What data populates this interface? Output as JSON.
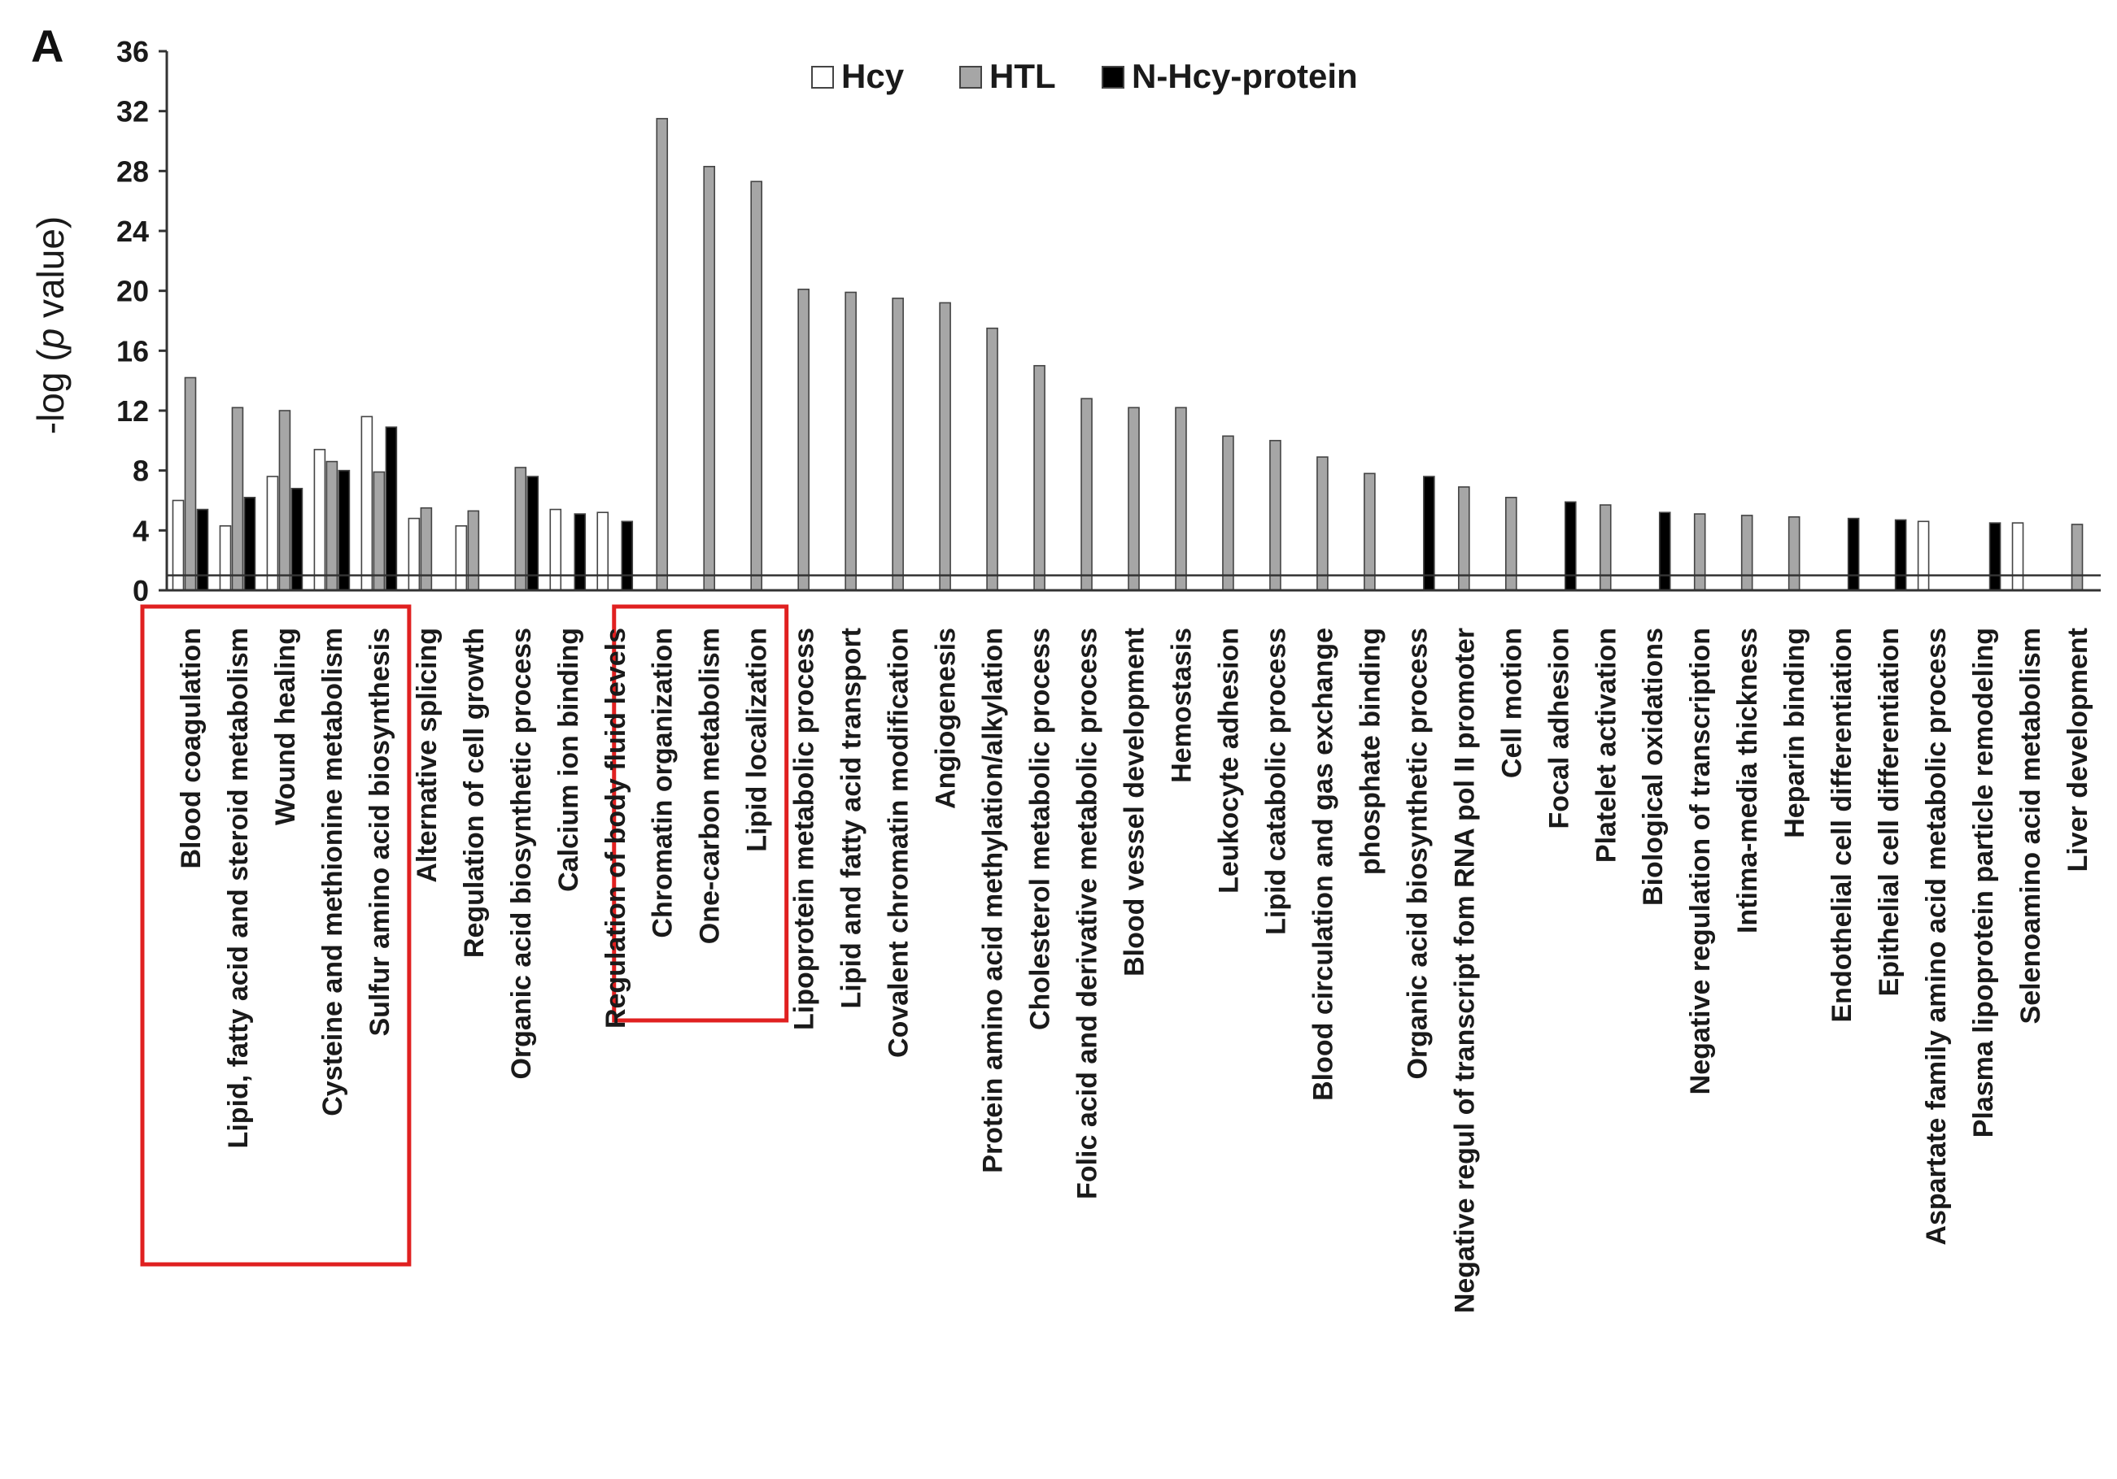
{
  "chart_data": {
    "type": "bar",
    "panel_label": "A",
    "ylabel_pre": "-log (",
    "ylabel_ital": "p",
    "ylabel_post": " value)",
    "ylim": [
      0,
      36
    ],
    "yticks": [
      "0",
      "4",
      "8",
      "12",
      "16",
      "20",
      "24",
      "28",
      "32",
      "36"
    ],
    "threshold": 1.0,
    "legend_position": "top-center",
    "colors": {
      "Hcy": "#ffffff",
      "HTL": "#a6a6a6",
      "N-Hcy-protein": "#000000",
      "edge": "#444444",
      "highlight": "#e02020"
    },
    "categories": [
      "Blood coagulation",
      "Lipid, fatty acid and steroid metabolism",
      "Wound healing",
      "Cysteine and methionine metabolism",
      "Sulfur amino acid biosynthesis",
      "Alternative splicing",
      "Regulation of cell growth",
      "Organic acid biosynthetic process",
      "Calcium ion binding",
      "Regulation of body fluid levels",
      "Chromatin organization",
      "One-carbon metabolism",
      "Lipid localization",
      "Lipoprotein metabolic process",
      "Lipid and fatty acid transport",
      "Covalent chromatin modification",
      "Angiogenesis",
      "Protein amino acid methylation/alkylation",
      "Cholesterol metabolic process",
      "Folic acid and derivative metabolic process",
      "Blood vessel development",
      "Hemostasis",
      "Leukocyte adhesion",
      "Lipid catabolic process",
      "Blood circulation and gas exchange",
      "phosphate binding",
      "Organic acid biosynthetic process",
      "Negative regul of transcript fom RNA pol II promoter",
      "Cell motion",
      "Focal adhesion",
      "Platelet activation",
      "Biological oxidations",
      "Negative regulation of transcription",
      "Intima-media thickness",
      "Heparin binding",
      "Endothelial cell differentiation",
      "Epithelial cell differentiation",
      "Aspartate family amino acid metabolic process",
      "Plasma lipoprotein particle remodeling",
      "Selenoamino acid metabolism",
      "Liver development"
    ],
    "series": [
      {
        "name": "Hcy",
        "values": [
          6.0,
          4.3,
          7.6,
          9.4,
          11.6,
          4.8,
          4.3,
          null,
          5.4,
          5.2,
          null,
          null,
          null,
          null,
          null,
          null,
          null,
          null,
          null,
          null,
          null,
          null,
          null,
          null,
          null,
          null,
          null,
          null,
          null,
          null,
          null,
          null,
          null,
          null,
          null,
          null,
          null,
          4.6,
          null,
          4.5,
          null
        ]
      },
      {
        "name": "HTL",
        "values": [
          14.2,
          12.2,
          12.0,
          8.6,
          7.9,
          5.5,
          5.3,
          8.2,
          null,
          null,
          31.5,
          28.3,
          27.3,
          20.1,
          19.9,
          19.5,
          19.2,
          17.5,
          15.0,
          12.8,
          12.2,
          12.2,
          10.3,
          10.0,
          8.9,
          7.8,
          null,
          6.9,
          6.2,
          null,
          5.7,
          null,
          5.1,
          5.0,
          4.9,
          null,
          null,
          null,
          null,
          null,
          4.4
        ]
      },
      {
        "name": "N-Hcy-protein",
        "values": [
          5.4,
          6.2,
          6.8,
          8.0,
          10.9,
          null,
          null,
          7.6,
          5.1,
          4.6,
          null,
          null,
          null,
          null,
          null,
          null,
          null,
          null,
          null,
          null,
          null,
          null,
          null,
          null,
          null,
          null,
          7.6,
          null,
          null,
          5.9,
          null,
          5.2,
          null,
          null,
          null,
          4.8,
          4.7,
          null,
          4.5,
          null,
          null
        ]
      }
    ],
    "highlight_groups": [
      [
        0,
        4
      ],
      [
        10,
        12
      ]
    ]
  }
}
